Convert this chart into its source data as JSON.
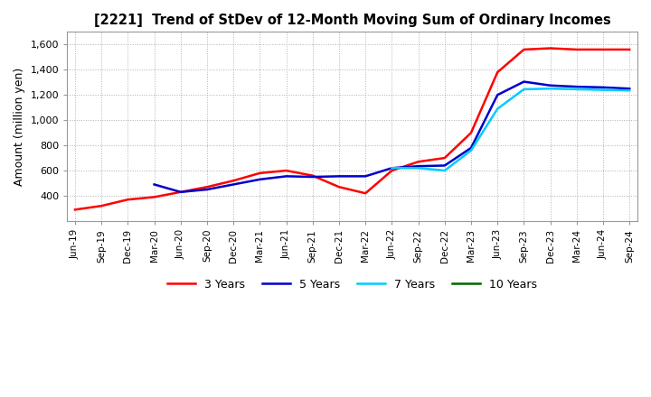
{
  "title": "[2221]  Trend of StDev of 12-Month Moving Sum of Ordinary Incomes",
  "ylabel": "Amount (million yen)",
  "ylim": [
    200,
    1700
  ],
  "yticks": [
    400,
    600,
    800,
    1000,
    1200,
    1400,
    1600
  ],
  "background_color": "#ffffff",
  "grid_color": "#b0b0b0",
  "line_colors": {
    "3y": "#ff0000",
    "5y": "#0000cc",
    "7y": "#00ccff",
    "10y": "#006600"
  },
  "legend_labels": [
    "3 Years",
    "5 Years",
    "7 Years",
    "10 Years"
  ],
  "x_labels": [
    "Jun-19",
    "Sep-19",
    "Dec-19",
    "Mar-20",
    "Jun-20",
    "Sep-20",
    "Dec-20",
    "Mar-21",
    "Jun-21",
    "Sep-21",
    "Dec-21",
    "Mar-22",
    "Jun-22",
    "Sep-22",
    "Dec-22",
    "Mar-23",
    "Jun-23",
    "Sep-23",
    "Dec-23",
    "Mar-24",
    "Jun-24",
    "Sep-24"
  ],
  "series_3y": [
    290,
    320,
    370,
    390,
    430,
    470,
    520,
    580,
    600,
    560,
    470,
    420,
    600,
    670,
    700,
    900,
    1380,
    1560,
    1570,
    1560,
    1560,
    1560
  ],
  "series_5y": [
    null,
    null,
    null,
    490,
    430,
    450,
    490,
    530,
    555,
    550,
    555,
    555,
    620,
    635,
    640,
    780,
    1200,
    1305,
    1275,
    1265,
    1260,
    1250
  ],
  "series_7y": [
    null,
    null,
    null,
    null,
    null,
    null,
    null,
    null,
    null,
    null,
    null,
    null,
    620,
    620,
    600,
    760,
    1090,
    1245,
    1250,
    1245,
    1240,
    1235
  ],
  "series_10y": [
    null,
    null,
    null,
    null,
    null,
    null,
    null,
    null,
    null,
    null,
    null,
    null,
    null,
    null,
    null,
    null,
    null,
    null,
    null,
    null,
    null,
    null
  ]
}
